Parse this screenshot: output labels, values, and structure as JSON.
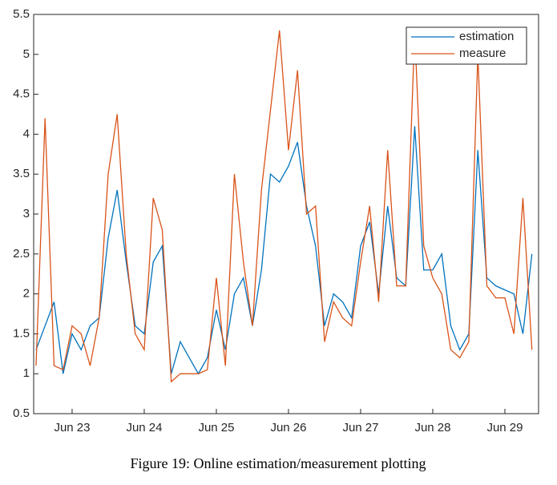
{
  "chart_data": {
    "type": "line",
    "caption": "Figure 19: Online estimation/measurement plotting",
    "x": [
      22.5,
      22.625,
      22.75,
      22.875,
      23,
      23.125,
      23.25,
      23.375,
      23.5,
      23.625,
      23.75,
      23.875,
      24,
      24.125,
      24.25,
      24.375,
      24.5,
      24.625,
      24.75,
      24.875,
      25,
      25.125,
      25.25,
      25.375,
      25.5,
      25.625,
      25.75,
      25.875,
      26,
      26.125,
      26.25,
      26.375,
      26.5,
      26.625,
      26.75,
      26.875,
      27,
      27.125,
      27.25,
      27.375,
      27.5,
      27.625,
      27.75,
      27.875,
      28,
      28.125,
      28.25,
      28.375,
      28.5,
      28.625,
      28.75,
      28.875,
      29,
      29.125,
      29.25,
      29.375
    ],
    "series": [
      {
        "name": "estimation",
        "color": "#0072bd",
        "values": [
          1.3,
          1.6,
          1.9,
          1.0,
          1.5,
          1.3,
          1.6,
          1.7,
          2.7,
          3.3,
          2.4,
          1.6,
          1.5,
          2.4,
          2.6,
          1.0,
          1.4,
          1.2,
          1.0,
          1.2,
          1.8,
          1.3,
          2.0,
          2.2,
          1.6,
          2.3,
          3.5,
          3.4,
          3.6,
          3.9,
          3.1,
          2.6,
          1.6,
          2.0,
          1.9,
          1.7,
          2.6,
          2.9,
          2.0,
          3.1,
          2.2,
          2.1,
          4.1,
          2.3,
          2.3,
          2.5,
          1.6,
          1.3,
          1.5,
          3.8,
          2.2,
          2.1,
          2.05,
          2.0,
          1.5,
          2.5
        ]
      },
      {
        "name": "measure",
        "color": "#d95319",
        "values": [
          1.1,
          4.2,
          1.1,
          1.05,
          1.6,
          1.5,
          1.1,
          1.7,
          3.5,
          4.25,
          2.5,
          1.5,
          1.3,
          3.2,
          2.8,
          0.9,
          1.0,
          1.0,
          1.0,
          1.05,
          2.2,
          1.1,
          3.5,
          2.4,
          1.6,
          3.3,
          4.3,
          5.3,
          3.8,
          4.8,
          3.0,
          3.1,
          1.4,
          1.9,
          1.7,
          1.6,
          2.4,
          3.1,
          1.9,
          3.8,
          2.1,
          2.1,
          5.3,
          2.6,
          2.2,
          2.0,
          1.3,
          1.2,
          1.4,
          5.0,
          2.1,
          1.95,
          1.95,
          1.5,
          3.2,
          1.3
        ]
      }
    ],
    "xlim": [
      22.467,
      29.467
    ],
    "xticks": [
      {
        "value": 23,
        "label": "Jun 23"
      },
      {
        "value": 24,
        "label": "Jun 24"
      },
      {
        "value": 25,
        "label": "Jun 25"
      },
      {
        "value": 26,
        "label": "Jun 26"
      },
      {
        "value": 27,
        "label": "Jun 27"
      },
      {
        "value": 28,
        "label": "Jun 28"
      },
      {
        "value": 29,
        "label": "Jun 29"
      }
    ],
    "ylim": [
      0.5,
      5.5
    ],
    "yticks": [
      0.5,
      1,
      1.5,
      2,
      2.5,
      3,
      3.5,
      4,
      4.5,
      5,
      5.5
    ],
    "legend": "top-right"
  }
}
